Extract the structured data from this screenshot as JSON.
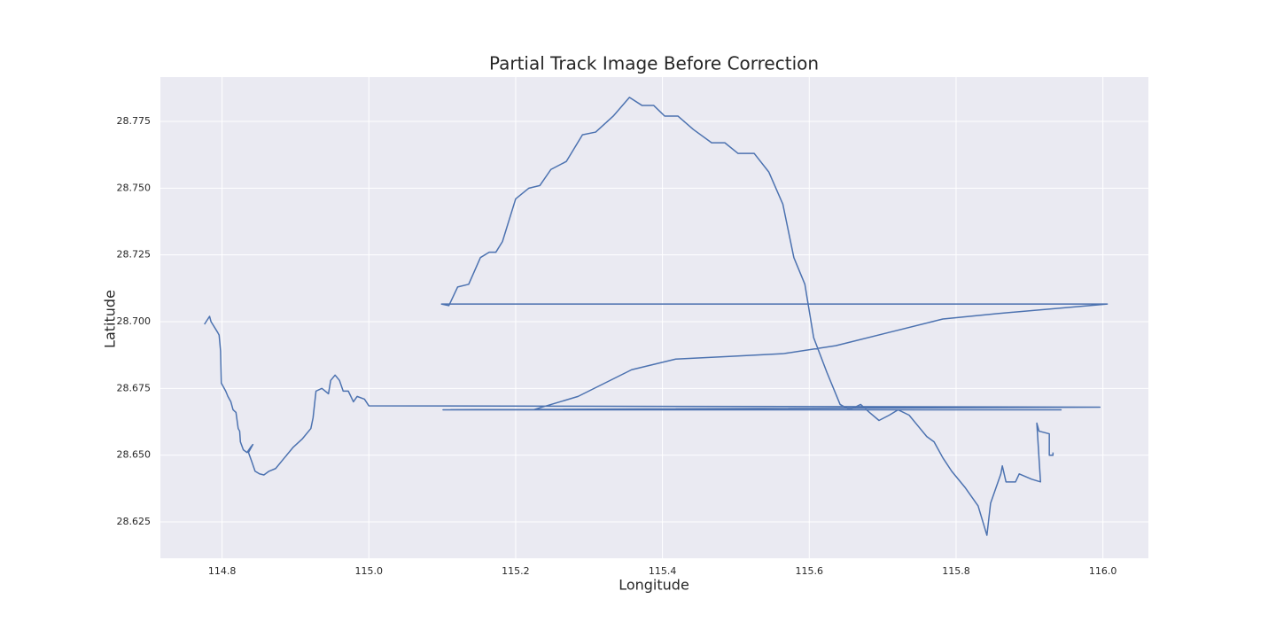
{
  "chart_data": {
    "type": "line",
    "title": "Partial Track Image Before Correction",
    "xlabel": "Longitude",
    "ylabel": "Latitude",
    "x": [
      114.776,
      114.783,
      114.785,
      114.794,
      114.796,
      114.798,
      114.799,
      114.805,
      114.808,
      114.812,
      114.815,
      114.819,
      114.822,
      114.824,
      114.825,
      114.829,
      114.834,
      114.839,
      114.842,
      114.836,
      114.84,
      114.845,
      114.851,
      114.857,
      114.864,
      114.873,
      114.882,
      114.897,
      114.909,
      114.921,
      114.924,
      114.928,
      114.936,
      114.945,
      114.948,
      114.954,
      114.96,
      114.965,
      114.972,
      114.979,
      114.984,
      114.994,
      115.0,
      115.996,
      115.101,
      115.943,
      115.224,
      115.285,
      115.358,
      115.418,
      115.491,
      115.564,
      115.636,
      115.709,
      115.782,
      115.855,
      116.006,
      115.099,
      115.109,
      115.121,
      115.136,
      115.152,
      115.164,
      115.173,
      115.182,
      115.2,
      115.218,
      115.233,
      115.248,
      115.269,
      115.291,
      115.309,
      115.333,
      115.355,
      115.372,
      115.388,
      115.403,
      115.421,
      115.442,
      115.467,
      115.485,
      115.503,
      115.525,
      115.545,
      115.564,
      115.579,
      115.594,
      115.606,
      115.624,
      115.642,
      115.655,
      115.67,
      115.682,
      115.695,
      115.709,
      115.721,
      115.736,
      115.748,
      115.76,
      115.77,
      115.782,
      115.794,
      115.812,
      115.83,
      115.842,
      115.847,
      115.861,
      115.863,
      115.868,
      115.881,
      115.886,
      115.903,
      115.915,
      115.91,
      115.913,
      115.927,
      115.927,
      115.932,
      115.932
    ],
    "values": [
      28.699,
      28.702,
      28.7,
      28.696,
      28.695,
      28.689,
      28.677,
      28.674,
      28.672,
      28.67,
      28.667,
      28.666,
      28.66,
      28.659,
      28.655,
      28.652,
      28.651,
      28.653,
      28.654,
      28.651,
      28.648,
      28.644,
      28.643,
      28.6426,
      28.644,
      28.645,
      28.648,
      28.653,
      28.656,
      28.66,
      28.664,
      28.674,
      28.675,
      28.673,
      28.678,
      28.68,
      28.678,
      28.674,
      28.674,
      28.67,
      28.672,
      28.671,
      28.6685,
      28.668,
      28.667,
      28.667,
      28.667,
      28.672,
      28.682,
      28.686,
      28.687,
      28.688,
      28.691,
      28.696,
      28.701,
      28.703,
      28.7066,
      28.7066,
      28.706,
      28.713,
      28.714,
      28.724,
      28.726,
      28.726,
      28.73,
      28.746,
      28.75,
      28.751,
      28.757,
      28.76,
      28.77,
      28.771,
      28.777,
      28.784,
      28.781,
      28.781,
      28.777,
      28.777,
      28.772,
      28.767,
      28.767,
      28.763,
      28.763,
      28.756,
      28.744,
      28.724,
      28.714,
      28.694,
      28.681,
      28.669,
      28.667,
      28.669,
      28.666,
      28.663,
      28.665,
      28.667,
      28.665,
      28.661,
      28.657,
      28.655,
      28.649,
      28.644,
      28.638,
      28.631,
      28.62,
      28.632,
      28.643,
      28.646,
      28.64,
      28.64,
      28.643,
      28.641,
      28.64,
      28.662,
      28.659,
      28.658,
      28.65,
      28.65,
      28.651
    ],
    "color": "#4c72b0",
    "xlim": [
      114.716,
      116.062
    ],
    "xticks": [
      114.8,
      {
        "value": 115,
        "label": "115.0"
      },
      115.2,
      115.4,
      115.6,
      115.8,
      {
        "value": 116,
        "label": "116.0"
      }
    ],
    "ylim": [
      28.6114,
      28.7916
    ],
    "yticks": [
      28.625,
      {
        "value": 28.65,
        "label": "28.650"
      },
      28.675,
      {
        "value": 28.7,
        "label": "28.700"
      },
      28.725,
      {
        "value": 28.75,
        "label": "28.750"
      },
      28.775
    ],
    "grid": true
  }
}
